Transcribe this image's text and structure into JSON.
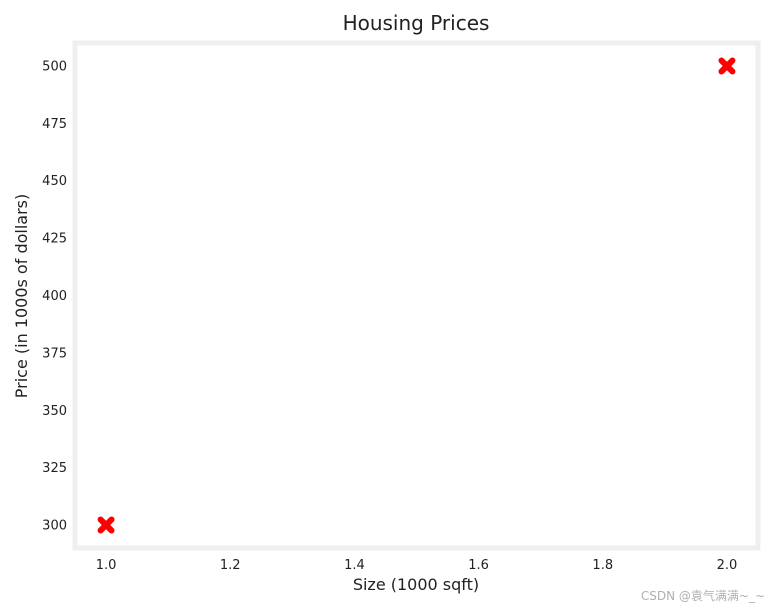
{
  "chart_data": {
    "type": "scatter",
    "title": "Housing Prices",
    "xlabel": "Size (1000 sqft)",
    "ylabel": "Price (in 1000s of dollars)",
    "x": [
      1.0,
      2.0
    ],
    "y": [
      300,
      500
    ],
    "xlim": [
      0.95,
      2.05
    ],
    "ylim": [
      290,
      510
    ],
    "xticks": [
      1.0,
      1.2,
      1.4,
      1.6,
      1.8,
      2.0
    ],
    "xtick_labels": [
      "1.0",
      "1.2",
      "1.4",
      "1.6",
      "1.8",
      "2.0"
    ],
    "yticks": [
      300,
      325,
      350,
      375,
      400,
      425,
      450,
      475,
      500
    ],
    "ytick_labels": [
      "300",
      "325",
      "350",
      "375",
      "400",
      "425",
      "450",
      "475",
      "500"
    ],
    "marker": "x",
    "marker_color": "#ff0000",
    "frame_color": "#efefef",
    "grid": false,
    "legend": "none"
  },
  "watermark": "CSDN @袁气满满~_~"
}
